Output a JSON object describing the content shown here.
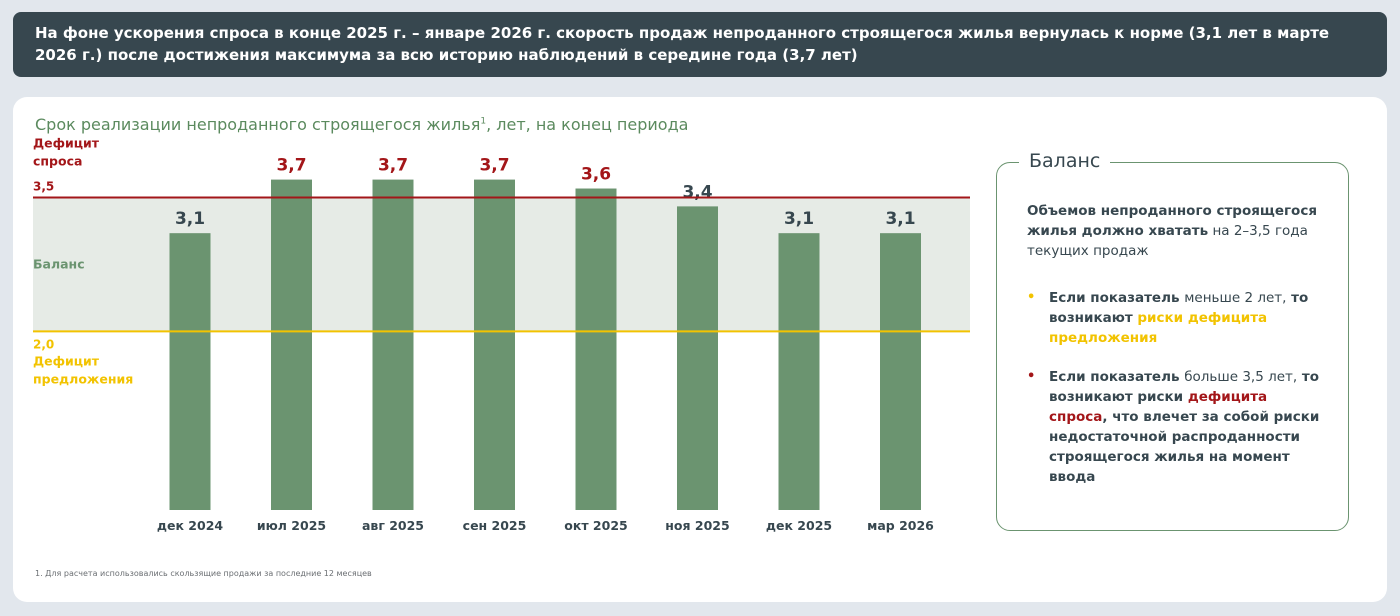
{
  "header": {
    "text": "На фоне ускорения спроса в конце 2025 г. – январе 2026 г. скорость продаж непроданного строящегося жилья вернулась к норме (3,1 лет в марте 2026 г.) после достижения максимума за всю историю наблюдений в середине года (3,7 лет)"
  },
  "chart_data": {
    "type": "bar",
    "title": "Срок реализации непроданного строящегося жилья",
    "title_sup": "1",
    "title_suffix": ", лет, на конец периода",
    "categories": [
      "дек 2024",
      "июл 2025",
      "авг 2025",
      "сен 2025",
      "окт 2025",
      "ноя 2025",
      "дек 2025",
      "мар 2026"
    ],
    "values": [
      3.1,
      3.7,
      3.7,
      3.7,
      3.6,
      3.4,
      3.1,
      3.1
    ],
    "value_labels": [
      "3,1",
      "3,7",
      "3,7",
      "3,7",
      "3,6",
      "3,4",
      "3,1",
      "3,1"
    ],
    "ylim": [
      0,
      4
    ],
    "thresholds": {
      "upper": {
        "value": 3.5,
        "label": "3,5",
        "zone_label": "Дефицит\nспроса",
        "color": "#a31619"
      },
      "lower": {
        "value": 2.0,
        "label": "2,0",
        "zone_label": "Дефицит\nпредложения",
        "color": "#f2c300"
      },
      "band_label": "Баланс"
    },
    "colors": {
      "bar": "#6b9470",
      "label_normal": "#37474f",
      "label_above": "#a31619",
      "band": "#e6ebe6",
      "band_label": "#6b9470"
    }
  },
  "card": {
    "title": "Баланс",
    "lead_bold": "Объемов непроданного строящегося жилья должно хватать",
    "lead_rest": " на 2–3,5 года текущих продаж",
    "bullet1": {
      "dot_color": "#f2c300",
      "p1": "Если показатель ",
      "p2": "меньше 2 лет,",
      "p3": " то возникают ",
      "hl": "риски дефицита предложения"
    },
    "bullet2": {
      "dot_color": "#a31619",
      "p1": "Если показатель ",
      "p2": "больше 3,5 лет,",
      "p3": " то возникают риски ",
      "hl": "дефицита спроса",
      "p4": ", что влечет за собой риски недостаточной распроданности строящегося жилья на момент ввода"
    }
  },
  "footnote": "1. Для расчета использовались скользящие продажи за последние 12 месяцев"
}
